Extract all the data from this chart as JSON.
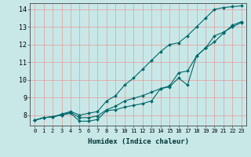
{
  "xlabel": "Humidex (Indice chaleur)",
  "bg_color": "#c8e8e8",
  "grid_color": "#e89898",
  "line_color": "#006868",
  "xlim": [
    -0.5,
    23.5
  ],
  "ylim": [
    7.4,
    14.35
  ],
  "x": [
    0,
    1,
    2,
    3,
    4,
    5,
    6,
    7,
    8,
    9,
    10,
    11,
    12,
    13,
    14,
    15,
    16,
    17,
    18,
    19,
    20,
    21,
    22,
    23
  ],
  "line_top": [
    7.7,
    7.85,
    7.9,
    8.05,
    8.2,
    8.0,
    8.1,
    8.2,
    8.8,
    9.1,
    9.7,
    10.1,
    10.6,
    11.1,
    11.6,
    12.0,
    12.1,
    12.5,
    13.0,
    13.5,
    14.0,
    14.1,
    14.15,
    14.2
  ],
  "line_mid": [
    7.7,
    7.85,
    7.9,
    8.0,
    8.15,
    7.85,
    7.85,
    7.95,
    8.3,
    8.5,
    8.8,
    8.95,
    9.1,
    9.3,
    9.5,
    9.65,
    10.4,
    10.5,
    11.35,
    11.8,
    12.15,
    12.65,
    13.1,
    13.3
  ],
  "line_low": [
    7.7,
    7.85,
    7.9,
    8.0,
    8.1,
    7.65,
    7.65,
    7.75,
    8.25,
    8.3,
    8.45,
    8.55,
    8.65,
    8.8,
    9.5,
    9.6,
    10.1,
    9.7,
    11.35,
    11.8,
    12.5,
    12.7,
    13.0,
    13.25
  ],
  "yticks": [
    8,
    9,
    10,
    11,
    12,
    13,
    14
  ],
  "xticks": [
    0,
    1,
    2,
    3,
    4,
    5,
    6,
    7,
    8,
    9,
    10,
    11,
    12,
    13,
    14,
    15,
    16,
    17,
    18,
    19,
    20,
    21,
    22,
    23
  ]
}
